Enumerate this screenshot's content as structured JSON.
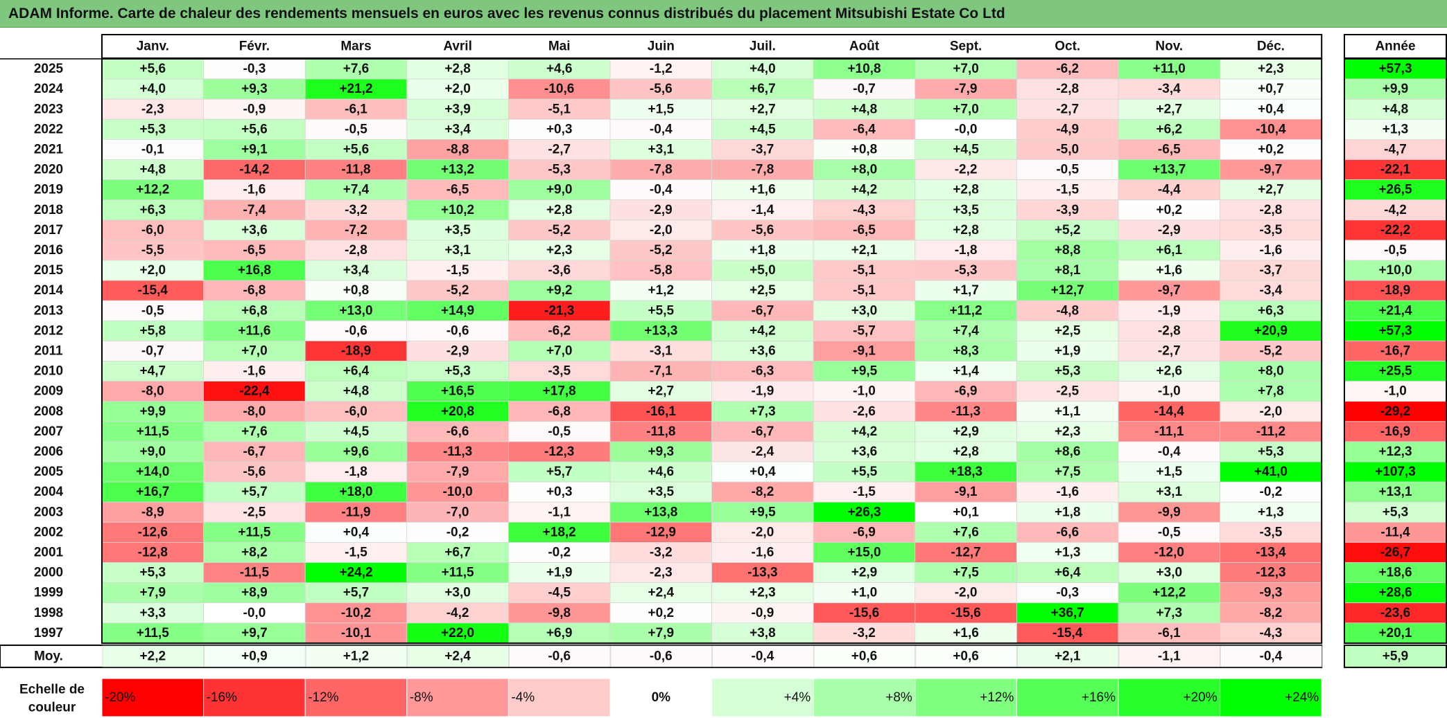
{
  "title": "ADAM Informe. Carte de chaleur des rendements mensuels en euros avec les revenus connus distribués du placement Mitsubishi Estate Co Ltd",
  "annual_header": "Année",
  "avg_label": "Moy.",
  "scale_label": [
    "Echelle de",
    "couleur"
  ],
  "colors": {
    "strong_red": "#ff0000",
    "white": "#ffffff",
    "strong_green": "#00ff00",
    "title_bg": "#7fc77f"
  },
  "chart_data": {
    "type": "heatmap",
    "title": "ADAM Informe. Carte de chaleur des rendements mensuels en euros avec les revenus connus distribués du placement Mitsubishi Estate Co Ltd",
    "columns": [
      "Janv.",
      "Févr.",
      "Mars",
      "Avril",
      "Mai",
      "Juin",
      "Juil.",
      "Août",
      "Sept.",
      "Oct.",
      "Nov.",
      "Déc."
    ],
    "years": [
      "2025",
      "2024",
      "2023",
      "2022",
      "2021",
      "2020",
      "2019",
      "2018",
      "2017",
      "2016",
      "2015",
      "2014",
      "2013",
      "2012",
      "2011",
      "2010",
      "2009",
      "2008",
      "2007",
      "2006",
      "2005",
      "2004",
      "2003",
      "2002",
      "2001",
      "2000",
      "1999",
      "1998",
      "1997"
    ],
    "values": [
      [
        5.6,
        -0.3,
        7.6,
        2.8,
        4.6,
        -1.2,
        4.0,
        10.8,
        7.0,
        -6.2,
        11.0,
        2.3
      ],
      [
        4.0,
        9.3,
        21.2,
        2.0,
        -10.6,
        -5.6,
        6.7,
        -0.7,
        -7.9,
        -2.8,
        -3.4,
        0.7
      ],
      [
        -2.3,
        -0.9,
        -6.1,
        3.9,
        -5.1,
        1.5,
        2.7,
        4.8,
        7.0,
        -2.7,
        2.7,
        0.4
      ],
      [
        5.3,
        5.6,
        -0.5,
        3.4,
        0.3,
        -0.4,
        4.5,
        -6.4,
        -0.0,
        -4.9,
        6.2,
        -10.4
      ],
      [
        -0.1,
        9.1,
        5.6,
        -8.8,
        -2.7,
        3.1,
        -3.7,
        0.8,
        4.5,
        -5.0,
        -6.5,
        0.2
      ],
      [
        4.8,
        -14.2,
        -11.8,
        13.2,
        -5.3,
        -7.8,
        -7.8,
        8.0,
        -2.2,
        -0.5,
        13.7,
        -9.7
      ],
      [
        12.2,
        -1.6,
        7.4,
        -6.5,
        9.0,
        -0.4,
        1.6,
        4.2,
        2.8,
        -1.5,
        -4.4,
        2.7
      ],
      [
        6.3,
        -7.4,
        -3.2,
        10.2,
        2.8,
        -2.9,
        -1.4,
        -4.3,
        3.5,
        -3.9,
        0.2,
        -2.8
      ],
      [
        -6.0,
        3.6,
        -7.2,
        3.5,
        -5.2,
        -2.0,
        -5.6,
        -6.5,
        2.8,
        5.2,
        -2.9,
        -3.5
      ],
      [
        -5.5,
        -6.5,
        -2.8,
        3.1,
        2.3,
        -5.2,
        1.8,
        2.1,
        -1.8,
        8.8,
        6.1,
        -1.6
      ],
      [
        2.0,
        16.8,
        3.4,
        -1.5,
        -3.6,
        -5.8,
        5.0,
        -5.1,
        -5.3,
        8.1,
        1.6,
        -3.7
      ],
      [
        -15.4,
        -6.8,
        0.8,
        -5.2,
        9.2,
        1.2,
        2.5,
        -5.1,
        1.7,
        12.7,
        -9.7,
        -3.4
      ],
      [
        -0.5,
        6.8,
        13.0,
        14.9,
        -21.3,
        5.5,
        -6.7,
        3.0,
        11.2,
        -4.8,
        -1.9,
        6.3
      ],
      [
        5.8,
        11.6,
        -0.6,
        -0.6,
        -6.2,
        13.3,
        4.2,
        -5.7,
        7.4,
        2.5,
        -2.8,
        20.9
      ],
      [
        -0.7,
        7.0,
        -18.9,
        -2.9,
        7.0,
        -3.1,
        3.6,
        -9.1,
        8.3,
        1.9,
        -2.7,
        -5.2
      ],
      [
        4.7,
        -1.6,
        6.4,
        5.3,
        -3.5,
        -7.1,
        -6.3,
        9.5,
        1.4,
        5.3,
        2.6,
        8.0
      ],
      [
        -8.0,
        -22.4,
        4.8,
        16.5,
        17.8,
        2.7,
        -1.9,
        -1.0,
        -6.9,
        -2.5,
        -1.0,
        7.8
      ],
      [
        9.9,
        -8.0,
        -6.0,
        20.8,
        -6.8,
        -16.1,
        7.3,
        -2.6,
        -11.3,
        1.1,
        -14.4,
        -2.0
      ],
      [
        11.5,
        7.6,
        4.5,
        -6.6,
        -0.5,
        -11.8,
        -6.7,
        4.2,
        2.9,
        2.3,
        -11.1,
        -11.2
      ],
      [
        9.0,
        -6.7,
        9.6,
        -11.3,
        -12.3,
        9.3,
        -2.4,
        3.6,
        2.8,
        8.6,
        -0.4,
        5.3
      ],
      [
        14.0,
        -5.6,
        -1.8,
        -7.9,
        5.7,
        4.6,
        0.4,
        5.5,
        18.3,
        7.5,
        1.5,
        41.0
      ],
      [
        16.7,
        5.7,
        18.0,
        -10.0,
        0.3,
        3.5,
        -8.2,
        -1.5,
        -9.1,
        -1.6,
        3.1,
        -0.2
      ],
      [
        -8.9,
        -2.5,
        -11.9,
        -7.0,
        -1.1,
        13.8,
        9.5,
        26.3,
        0.1,
        1.8,
        -9.9,
        1.3
      ],
      [
        -12.6,
        11.5,
        0.4,
        -0.2,
        18.2,
        -12.9,
        -2.0,
        -6.9,
        7.6,
        -6.6,
        -0.5,
        -3.5
      ],
      [
        -12.8,
        8.2,
        -1.5,
        6.7,
        -0.2,
        -3.2,
        -1.6,
        15.0,
        -12.7,
        1.3,
        -12.0,
        -13.4
      ],
      [
        5.3,
        -11.5,
        24.2,
        11.5,
        1.9,
        -2.3,
        -13.3,
        2.9,
        7.5,
        6.4,
        3.0,
        -12.3
      ],
      [
        7.9,
        8.9,
        5.7,
        3.0,
        -4.5,
        2.4,
        2.3,
        1.0,
        -2.0,
        -0.3,
        12.2,
        -9.3
      ],
      [
        3.3,
        -0.0,
        -10.2,
        -4.2,
        -9.8,
        0.2,
        -0.9,
        -15.6,
        -15.6,
        36.7,
        7.3,
        -8.2
      ],
      [
        11.5,
        9.7,
        -10.1,
        22.0,
        6.9,
        7.9,
        3.8,
        -3.2,
        1.6,
        -15.4,
        -6.1,
        -4.3
      ]
    ],
    "display": [
      [
        "+5,6",
        "-0,3",
        "+7,6",
        "+2,8",
        "+4,6",
        "-1,2",
        "+4,0",
        "+10,8",
        "+7,0",
        "-6,2",
        "+11,0",
        "+2,3"
      ],
      [
        "+4,0",
        "+9,3",
        "+21,2",
        "+2,0",
        "-10,6",
        "-5,6",
        "+6,7",
        "-0,7",
        "-7,9",
        "-2,8",
        "-3,4",
        "+0,7"
      ],
      [
        "-2,3",
        "-0,9",
        "-6,1",
        "+3,9",
        "-5,1",
        "+1,5",
        "+2,7",
        "+4,8",
        "+7,0",
        "-2,7",
        "+2,7",
        "+0,4"
      ],
      [
        "+5,3",
        "+5,6",
        "-0,5",
        "+3,4",
        "+0,3",
        "-0,4",
        "+4,5",
        "-6,4",
        "-0,0",
        "-4,9",
        "+6,2",
        "-10,4"
      ],
      [
        "-0,1",
        "+9,1",
        "+5,6",
        "-8,8",
        "-2,7",
        "+3,1",
        "-3,7",
        "+0,8",
        "+4,5",
        "-5,0",
        "-6,5",
        "+0,2"
      ],
      [
        "+4,8",
        "-14,2",
        "-11,8",
        "+13,2",
        "-5,3",
        "-7,8",
        "-7,8",
        "+8,0",
        "-2,2",
        "-0,5",
        "+13,7",
        "-9,7"
      ],
      [
        "+12,2",
        "-1,6",
        "+7,4",
        "-6,5",
        "+9,0",
        "-0,4",
        "+1,6",
        "+4,2",
        "+2,8",
        "-1,5",
        "-4,4",
        "+2,7"
      ],
      [
        "+6,3",
        "-7,4",
        "-3,2",
        "+10,2",
        "+2,8",
        "-2,9",
        "-1,4",
        "-4,3",
        "+3,5",
        "-3,9",
        "+0,2",
        "-2,8"
      ],
      [
        "-6,0",
        "+3,6",
        "-7,2",
        "+3,5",
        "-5,2",
        "-2,0",
        "-5,6",
        "-6,5",
        "+2,8",
        "+5,2",
        "-2,9",
        "-3,5"
      ],
      [
        "-5,5",
        "-6,5",
        "-2,8",
        "+3,1",
        "+2,3",
        "-5,2",
        "+1,8",
        "+2,1",
        "-1,8",
        "+8,8",
        "+6,1",
        "-1,6"
      ],
      [
        "+2,0",
        "+16,8",
        "+3,4",
        "-1,5",
        "-3,6",
        "-5,8",
        "+5,0",
        "-5,1",
        "-5,3",
        "+8,1",
        "+1,6",
        "-3,7"
      ],
      [
        "-15,4",
        "-6,8",
        "+0,8",
        "-5,2",
        "+9,2",
        "+1,2",
        "+2,5",
        "-5,1",
        "+1,7",
        "+12,7",
        "-9,7",
        "-3,4"
      ],
      [
        "-0,5",
        "+6,8",
        "+13,0",
        "+14,9",
        "-21,3",
        "+5,5",
        "-6,7",
        "+3,0",
        "+11,2",
        "-4,8",
        "-1,9",
        "+6,3"
      ],
      [
        "+5,8",
        "+11,6",
        "-0,6",
        "-0,6",
        "-6,2",
        "+13,3",
        "+4,2",
        "-5,7",
        "+7,4",
        "+2,5",
        "-2,8",
        "+20,9"
      ],
      [
        "-0,7",
        "+7,0",
        "-18,9",
        "-2,9",
        "+7,0",
        "-3,1",
        "+3,6",
        "-9,1",
        "+8,3",
        "+1,9",
        "-2,7",
        "-5,2"
      ],
      [
        "+4,7",
        "-1,6",
        "+6,4",
        "+5,3",
        "-3,5",
        "-7,1",
        "-6,3",
        "+9,5",
        "+1,4",
        "+5,3",
        "+2,6",
        "+8,0"
      ],
      [
        "-8,0",
        "-22,4",
        "+4,8",
        "+16,5",
        "+17,8",
        "+2,7",
        "-1,9",
        "-1,0",
        "-6,9",
        "-2,5",
        "-1,0",
        "+7,8"
      ],
      [
        "+9,9",
        "-8,0",
        "-6,0",
        "+20,8",
        "-6,8",
        "-16,1",
        "+7,3",
        "-2,6",
        "-11,3",
        "+1,1",
        "-14,4",
        "-2,0"
      ],
      [
        "+11,5",
        "+7,6",
        "+4,5",
        "-6,6",
        "-0,5",
        "-11,8",
        "-6,7",
        "+4,2",
        "+2,9",
        "+2,3",
        "-11,1",
        "-11,2"
      ],
      [
        "+9,0",
        "-6,7",
        "+9,6",
        "-11,3",
        "-12,3",
        "+9,3",
        "-2,4",
        "+3,6",
        "+2,8",
        "+8,6",
        "-0,4",
        "+5,3"
      ],
      [
        "+14,0",
        "-5,6",
        "-1,8",
        "-7,9",
        "+5,7",
        "+4,6",
        "+0,4",
        "+5,5",
        "+18,3",
        "+7,5",
        "+1,5",
        "+41,0"
      ],
      [
        "+16,7",
        "+5,7",
        "+18,0",
        "-10,0",
        "+0,3",
        "+3,5",
        "-8,2",
        "-1,5",
        "-9,1",
        "-1,6",
        "+3,1",
        "-0,2"
      ],
      [
        "-8,9",
        "-2,5",
        "-11,9",
        "-7,0",
        "-1,1",
        "+13,8",
        "+9,5",
        "+26,3",
        "+0,1",
        "+1,8",
        "-9,9",
        "+1,3"
      ],
      [
        "-12,6",
        "+11,5",
        "+0,4",
        "-0,2",
        "+18,2",
        "-12,9",
        "-2,0",
        "-6,9",
        "+7,6",
        "-6,6",
        "-0,5",
        "-3,5"
      ],
      [
        "-12,8",
        "+8,2",
        "-1,5",
        "+6,7",
        "-0,2",
        "-3,2",
        "-1,6",
        "+15,0",
        "-12,7",
        "+1,3",
        "-12,0",
        "-13,4"
      ],
      [
        "+5,3",
        "-11,5",
        "+24,2",
        "+11,5",
        "+1,9",
        "-2,3",
        "-13,3",
        "+2,9",
        "+7,5",
        "+6,4",
        "+3,0",
        "-12,3"
      ],
      [
        "+7,9",
        "+8,9",
        "+5,7",
        "+3,0",
        "-4,5",
        "+2,4",
        "+2,3",
        "+1,0",
        "-2,0",
        "-0,3",
        "+12,2",
        "-9,3"
      ],
      [
        "+3,3",
        "-0,0",
        "-10,2",
        "-4,2",
        "-9,8",
        "+0,2",
        "-0,9",
        "-15,6",
        "-15,6",
        "+36,7",
        "+7,3",
        "-8,2"
      ],
      [
        "+11,5",
        "+9,7",
        "-10,1",
        "+22,0",
        "+6,9",
        "+7,9",
        "+3,8",
        "-3,2",
        "+1,6",
        "-15,4",
        "-6,1",
        "-4,3"
      ]
    ],
    "annual": [
      57.3,
      9.9,
      4.8,
      1.3,
      -4.7,
      -22.1,
      26.5,
      -4.2,
      -22.2,
      -0.5,
      10.0,
      -18.9,
      21.4,
      57.3,
      -16.7,
      25.5,
      -1.0,
      -29.2,
      -16.9,
      12.3,
      107.3,
      13.1,
      5.3,
      -11.4,
      -26.7,
      18.6,
      28.6,
      -23.6,
      20.1
    ],
    "annual_display": [
      "+57,3",
      "+9,9",
      "+4,8",
      "+1,3",
      "-4,7",
      "-22,1",
      "+26,5",
      "-4,2",
      "-22,2",
      "-0,5",
      "+10,0",
      "-18,9",
      "+21,4",
      "+57,3",
      "-16,7",
      "+25,5",
      "-1,0",
      "-29,2",
      "-16,9",
      "+12,3",
      "+107,3",
      "+13,1",
      "+5,3",
      "-11,4",
      "-26,7",
      "+18,6",
      "+28,6",
      "-23,6",
      "+20,1"
    ],
    "averages": [
      2.2,
      0.9,
      1.2,
      2.4,
      -0.6,
      -0.6,
      -0.4,
      0.6,
      0.6,
      2.1,
      -1.1,
      -0.4
    ],
    "averages_display": [
      "+2,2",
      "+0,9",
      "+1,2",
      "+2,4",
      "-0,6",
      "-0,6",
      "-0,4",
      "+0,6",
      "+0,6",
      "+2,1",
      "-1,1",
      "-0,4"
    ],
    "annual_average": 5.9,
    "annual_average_display": "+5,9",
    "color_scale": {
      "values": [
        -20,
        -16,
        -12,
        -8,
        -4,
        0,
        4,
        8,
        12,
        16,
        20,
        24
      ],
      "labels": [
        "-20%",
        "-16%",
        "-12%",
        "-8%",
        "-4%",
        "0%",
        "+4%",
        "+8%",
        "+12%",
        "+16%",
        "+20%",
        "+24%"
      ],
      "min": -20,
      "max": 24
    }
  }
}
